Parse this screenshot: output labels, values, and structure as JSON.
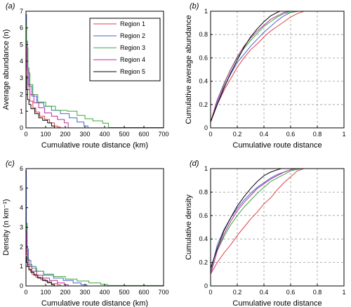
{
  "colors": {
    "axis": "#000000",
    "grid": "#9a9a9a",
    "series": [
      "#e0404a",
      "#4a63c8",
      "#3aa83a",
      "#b52e9a",
      "#000000"
    ]
  },
  "chart_data": [
    {
      "panel_label": "(a)",
      "type": "line",
      "xlabel": "Cumulative route distance (km)",
      "ylabel": "Average abundance (n)",
      "xlim": [
        0,
        700
      ],
      "ylim": [
        0,
        7
      ],
      "xticks": [
        0,
        100,
        200,
        300,
        400,
        500,
        600,
        700
      ],
      "yticks": [
        0,
        1,
        2,
        3,
        4,
        5,
        6,
        7
      ],
      "grid": false,
      "step": true,
      "legend": {
        "position": "top-right",
        "entries": [
          "Region 1",
          "Region 2",
          "Region 3",
          "Region 4",
          "Region 5"
        ]
      },
      "series": [
        {
          "name": "Region 1",
          "x": [
            0,
            4,
            10,
            20,
            35,
            50,
            70,
            95,
            120,
            145,
            160,
            175
          ],
          "y": [
            4.6,
            3.1,
            2.3,
            1.6,
            1.2,
            0.95,
            0.7,
            0.5,
            0.3,
            0.12,
            0.05,
            0
          ]
        },
        {
          "name": "Region 2",
          "x": [
            0,
            3,
            8,
            15,
            30,
            55,
            90,
            130,
            175,
            220,
            260,
            295,
            315
          ],
          "y": [
            6.8,
            5.2,
            3.6,
            2.5,
            1.9,
            1.5,
            1.3,
            1.05,
            0.85,
            0.6,
            0.35,
            0.12,
            0
          ]
        },
        {
          "name": "Region 3",
          "x": [
            0,
            3,
            10,
            20,
            35,
            60,
            100,
            150,
            210,
            260,
            300,
            340,
            390,
            420,
            700
          ],
          "y": [
            6.2,
            4.8,
            3.3,
            2.6,
            2.0,
            1.55,
            1.3,
            1.05,
            1.0,
            0.75,
            0.55,
            0.42,
            0.28,
            0.02,
            0.02
          ]
        },
        {
          "name": "Region 4",
          "x": [
            0,
            4,
            10,
            20,
            40,
            65,
            95,
            130,
            160,
            195,
            215
          ],
          "y": [
            4.9,
            3.5,
            2.6,
            2.0,
            1.5,
            1.2,
            0.9,
            0.7,
            0.5,
            0.3,
            0
          ]
        },
        {
          "name": "Region 5",
          "x": [
            0,
            3,
            8,
            15,
            25,
            45,
            65,
            85,
            110,
            130,
            145
          ],
          "y": [
            3.1,
            2.3,
            1.7,
            1.4,
            1.15,
            0.85,
            0.6,
            0.45,
            0.3,
            0.12,
            0
          ]
        }
      ]
    },
    {
      "panel_label": "(b)",
      "type": "line",
      "xlabel": "Cumulative route distance",
      "ylabel": "Cumulative average abundance",
      "xlim": [
        0,
        1
      ],
      "ylim": [
        0,
        1
      ],
      "xticks": [
        0,
        0.2,
        0.4,
        0.6,
        0.8,
        1
      ],
      "yticks": [
        0,
        0.2,
        0.4,
        0.6,
        0.8,
        1
      ],
      "grid": true,
      "series": [
        {
          "name": "Region 1",
          "x": [
            0,
            0.05,
            0.1,
            0.15,
            0.2,
            0.25,
            0.3,
            0.35,
            0.4,
            0.45,
            0.5,
            0.55,
            0.6,
            0.65,
            0.7
          ],
          "y": [
            0.05,
            0.2,
            0.32,
            0.42,
            0.52,
            0.6,
            0.67,
            0.72,
            0.78,
            0.83,
            0.87,
            0.91,
            0.95,
            0.98,
            1.0
          ]
        },
        {
          "name": "Region 2",
          "x": [
            0,
            0.05,
            0.1,
            0.15,
            0.2,
            0.25,
            0.3,
            0.35,
            0.4,
            0.45,
            0.5,
            0.55,
            0.6,
            0.65
          ],
          "y": [
            0.05,
            0.22,
            0.35,
            0.46,
            0.56,
            0.63,
            0.7,
            0.76,
            0.82,
            0.87,
            0.92,
            0.96,
            0.99,
            1.0
          ]
        },
        {
          "name": "Region 3",
          "x": [
            0,
            0.05,
            0.1,
            0.15,
            0.2,
            0.25,
            0.3,
            0.35,
            0.4,
            0.45,
            0.5,
            0.55,
            0.6,
            0.66
          ],
          "y": [
            0.05,
            0.24,
            0.38,
            0.5,
            0.6,
            0.68,
            0.75,
            0.81,
            0.87,
            0.91,
            0.95,
            0.98,
            0.99,
            1.0
          ]
        },
        {
          "name": "Region 4",
          "x": [
            0,
            0.05,
            0.1,
            0.15,
            0.2,
            0.25,
            0.3,
            0.35,
            0.4,
            0.45,
            0.5,
            0.55,
            0.6
          ],
          "y": [
            0.05,
            0.24,
            0.37,
            0.5,
            0.61,
            0.7,
            0.77,
            0.83,
            0.88,
            0.93,
            0.96,
            0.99,
            1.0
          ]
        },
        {
          "name": "Region 5",
          "x": [
            0,
            0.05,
            0.1,
            0.15,
            0.2,
            0.25,
            0.3,
            0.35,
            0.4,
            0.45,
            0.5,
            0.52
          ],
          "y": [
            0.05,
            0.2,
            0.34,
            0.47,
            0.58,
            0.69,
            0.78,
            0.85,
            0.91,
            0.96,
            0.99,
            1.0
          ]
        }
      ]
    },
    {
      "panel_label": "(c)",
      "type": "line",
      "xlabel": "Cumulative route distance (km)",
      "ylabel": "Density (n km⁻¹)",
      "xlim": [
        0,
        700
      ],
      "ylim": [
        0,
        6
      ],
      "xticks": [
        0,
        100,
        200,
        300,
        400,
        500,
        600,
        700
      ],
      "yticks": [
        0,
        1,
        2,
        3,
        4,
        5,
        6
      ],
      "grid": false,
      "step": true,
      "series": [
        {
          "name": "Region 1",
          "x": [
            0,
            3,
            8,
            15,
            30,
            50,
            75,
            100,
            130,
            160,
            175
          ],
          "y": [
            2.6,
            1.6,
            1.1,
            0.8,
            0.6,
            0.45,
            0.32,
            0.22,
            0.12,
            0.05,
            0
          ]
        },
        {
          "name": "Region 2",
          "x": [
            0,
            2,
            6,
            12,
            25,
            50,
            90,
            140,
            190,
            240,
            280,
            310
          ],
          "y": [
            5.9,
            3.2,
            1.9,
            1.3,
            1.0,
            0.75,
            0.55,
            0.4,
            0.28,
            0.15,
            0.06,
            0
          ]
        },
        {
          "name": "Region 3",
          "x": [
            0,
            3,
            8,
            15,
            30,
            55,
            90,
            140,
            200,
            260,
            320,
            380,
            415,
            700
          ],
          "y": [
            3.2,
            2.0,
            1.4,
            1.1,
            0.9,
            0.75,
            0.6,
            0.48,
            0.35,
            0.25,
            0.15,
            0.08,
            0.02,
            0.02
          ]
        },
        {
          "name": "Region 4",
          "x": [
            0,
            3,
            8,
            15,
            30,
            55,
            85,
            120,
            160,
            195,
            215
          ],
          "y": [
            2.8,
            1.8,
            1.3,
            1.0,
            0.75,
            0.55,
            0.4,
            0.28,
            0.15,
            0.06,
            0
          ]
        },
        {
          "name": "Region 5",
          "x": [
            0,
            3,
            8,
            15,
            25,
            40,
            60,
            85,
            110,
            130,
            145
          ],
          "y": [
            1.5,
            1.2,
            1.0,
            0.85,
            0.7,
            0.55,
            0.4,
            0.28,
            0.16,
            0.06,
            0
          ]
        }
      ]
    },
    {
      "panel_label": "(d)",
      "type": "line",
      "xlabel": "Cumulative route distance",
      "ylabel": "Cumulative density",
      "xlim": [
        0,
        1
      ],
      "ylim": [
        0,
        1
      ],
      "xticks": [
        0,
        0.2,
        0.4,
        0.6,
        0.8,
        1
      ],
      "yticks": [
        0,
        0.2,
        0.4,
        0.6,
        0.8,
        1
      ],
      "grid": true,
      "series": [
        {
          "name": "Region 1",
          "x": [
            0,
            0.05,
            0.1,
            0.15,
            0.2,
            0.25,
            0.3,
            0.35,
            0.4,
            0.45,
            0.5,
            0.55,
            0.6,
            0.65,
            0.7
          ],
          "y": [
            0.1,
            0.2,
            0.28,
            0.35,
            0.43,
            0.5,
            0.57,
            0.63,
            0.7,
            0.75,
            0.82,
            0.88,
            0.93,
            0.98,
            1.0
          ]
        },
        {
          "name": "Region 2",
          "x": [
            0,
            0.05,
            0.1,
            0.15,
            0.2,
            0.25,
            0.3,
            0.35,
            0.4,
            0.45,
            0.5,
            0.55,
            0.6,
            0.65
          ],
          "y": [
            0.12,
            0.35,
            0.48,
            0.58,
            0.66,
            0.73,
            0.79,
            0.84,
            0.88,
            0.92,
            0.95,
            0.97,
            0.99,
            1.0
          ]
        },
        {
          "name": "Region 3",
          "x": [
            0,
            0.05,
            0.1,
            0.15,
            0.2,
            0.25,
            0.3,
            0.35,
            0.4,
            0.45,
            0.5,
            0.55,
            0.6,
            0.68
          ],
          "y": [
            0.1,
            0.3,
            0.42,
            0.52,
            0.6,
            0.67,
            0.73,
            0.79,
            0.84,
            0.89,
            0.92,
            0.95,
            0.98,
            1.0
          ]
        },
        {
          "name": "Region 4",
          "x": [
            0,
            0.05,
            0.1,
            0.15,
            0.2,
            0.25,
            0.3,
            0.35,
            0.4,
            0.45,
            0.5,
            0.55,
            0.6,
            0.63
          ],
          "y": [
            0.1,
            0.3,
            0.44,
            0.55,
            0.64,
            0.71,
            0.77,
            0.83,
            0.87,
            0.91,
            0.94,
            0.97,
            0.99,
            1.0
          ]
        },
        {
          "name": "Region 5",
          "x": [
            0,
            0.05,
            0.1,
            0.15,
            0.2,
            0.25,
            0.3,
            0.35,
            0.4,
            0.45,
            0.5,
            0.53
          ],
          "y": [
            0.15,
            0.32,
            0.47,
            0.58,
            0.68,
            0.76,
            0.83,
            0.89,
            0.94,
            0.97,
            0.99,
            1.0
          ]
        }
      ]
    }
  ]
}
